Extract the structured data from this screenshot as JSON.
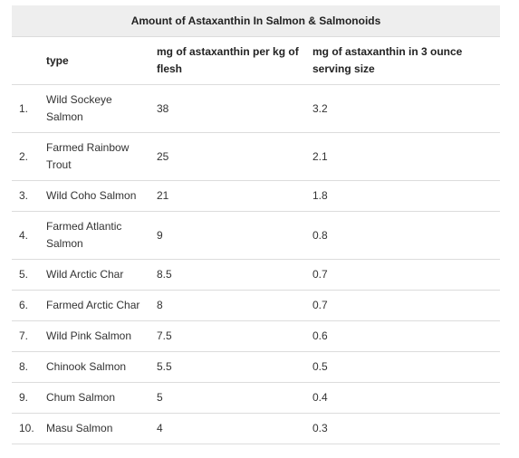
{
  "table": {
    "caption": "Amount of Astaxanthin In Salmon & Salmonoids",
    "headers": {
      "index": "",
      "type": "type",
      "per_kg": "mg of astaxanthin per kg of flesh",
      "per_serving": "mg of astaxanthin in 3 ounce serving size"
    },
    "rows": [
      {
        "index": "1.",
        "type": "Wild Sockeye Salmon",
        "per_kg": "38",
        "per_serving": "3.2"
      },
      {
        "index": "2.",
        "type": "Farmed Rainbow Trout",
        "per_kg": "25",
        "per_serving": "2.1"
      },
      {
        "index": "3.",
        "type": "Wild Coho Salmon",
        "per_kg": "21",
        "per_serving": "1.8"
      },
      {
        "index": "4.",
        "type": "Farmed Atlantic Salmon",
        "per_kg": "9",
        "per_serving": "0.8"
      },
      {
        "index": "5.",
        "type": "Wild Arctic Char",
        "per_kg": "8.5",
        "per_serving": "0.7"
      },
      {
        "index": "6.",
        "type": "Farmed Arctic Char",
        "per_kg": "8",
        "per_serving": "0.7"
      },
      {
        "index": "7.",
        "type": "Wild Pink Salmon",
        "per_kg": "7.5",
        "per_serving": "0.6"
      },
      {
        "index": "8.",
        "type": "Chinook Salmon",
        "per_kg": "5.5",
        "per_serving": "0.5"
      },
      {
        "index": "9.",
        "type": "Chum Salmon",
        "per_kg": "5",
        "per_serving": "0.4"
      },
      {
        "index": "10.",
        "type": "Masu Salmon",
        "per_kg": "4",
        "per_serving": "0.3"
      }
    ]
  }
}
